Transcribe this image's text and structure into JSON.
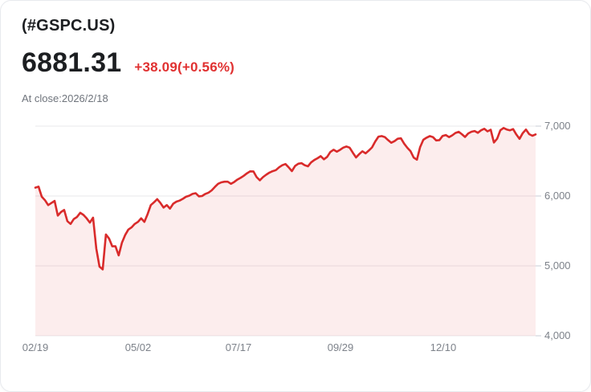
{
  "header": {
    "symbol": "(#GSPC.US)",
    "price": "6881.31",
    "change": "+38.09(+0.56%)",
    "as_of": "At close:2026/2/18"
  },
  "colors": {
    "line_red": "#d92b2b",
    "change_red": "#e03131",
    "area_pink": "#fbeaea",
    "grid_gray": "#e8e9eb",
    "axis_text_gray": "#7d828a",
    "heading_ink": "#1c1e21",
    "card_border": "#e8eaee"
  },
  "chart_data": {
    "type": "area",
    "title": "#GSPC.US 1-year price chart",
    "xlabel": "",
    "ylabel": "",
    "grid": true,
    "legend": "none",
    "ylim": [
      4000,
      7000
    ],
    "yticks": [
      {
        "label": "7,000",
        "value": 7000
      },
      {
        "label": "6,000",
        "value": 6000
      },
      {
        "label": "5,000",
        "value": 5000
      },
      {
        "label": "4,000",
        "value": 4000
      }
    ],
    "x_axis_labels": [
      "02/19",
      "05/02",
      "07/17",
      "09/29",
      "12/10"
    ],
    "series": [
      {
        "name": "#GSPC.US",
        "values": [
          6120,
          6135,
          5990,
          5940,
          5870,
          5900,
          5930,
          5720,
          5770,
          5800,
          5640,
          5600,
          5670,
          5700,
          5760,
          5730,
          5680,
          5620,
          5690,
          5250,
          4990,
          4950,
          5450,
          5390,
          5280,
          5280,
          5150,
          5330,
          5440,
          5520,
          5550,
          5600,
          5630,
          5680,
          5630,
          5740,
          5870,
          5910,
          5955,
          5900,
          5835,
          5870,
          5820,
          5890,
          5920,
          5935,
          5960,
          5990,
          6005,
          6030,
          6040,
          5995,
          6000,
          6030,
          6048,
          6080,
          6130,
          6175,
          6195,
          6205,
          6205,
          6175,
          6200,
          6235,
          6260,
          6290,
          6325,
          6353,
          6352,
          6270,
          6225,
          6270,
          6305,
          6335,
          6355,
          6370,
          6410,
          6440,
          6458,
          6410,
          6356,
          6430,
          6462,
          6470,
          6440,
          6425,
          6480,
          6515,
          6540,
          6570,
          6525,
          6560,
          6630,
          6662,
          6635,
          6660,
          6692,
          6708,
          6692,
          6620,
          6552,
          6600,
          6640,
          6610,
          6650,
          6695,
          6780,
          6850,
          6858,
          6842,
          6800,
          6762,
          6785,
          6820,
          6825,
          6750,
          6690,
          6640,
          6550,
          6520,
          6700,
          6805,
          6835,
          6858,
          6842,
          6795,
          6800,
          6860,
          6872,
          6842,
          6868,
          6902,
          6918,
          6885,
          6845,
          6895,
          6920,
          6930,
          6905,
          6940,
          6962,
          6925,
          6948,
          6765,
          6820,
          6940,
          6974,
          6952,
          6940,
          6958,
          6880,
          6818,
          6900,
          6950,
          6885,
          6862,
          6881.31
        ]
      }
    ]
  }
}
